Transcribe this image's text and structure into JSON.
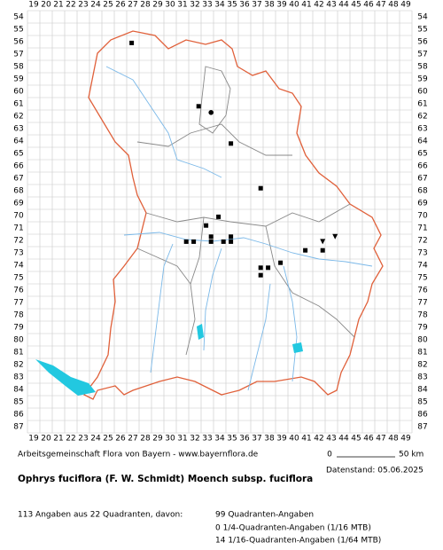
{
  "map": {
    "columns": [
      19,
      20,
      21,
      22,
      23,
      24,
      25,
      26,
      27,
      28,
      29,
      30,
      31,
      32,
      33,
      34,
      35,
      36,
      37,
      38,
      39,
      40,
      41,
      42,
      43,
      44,
      45,
      46,
      47,
      48,
      49
    ],
    "rows": [
      54,
      55,
      56,
      57,
      58,
      59,
      60,
      61,
      62,
      63,
      64,
      65,
      66,
      67,
      68,
      69,
      70,
      71,
      72,
      73,
      74,
      75,
      76,
      77,
      78,
      79,
      80,
      81,
      82,
      83,
      84,
      85,
      86,
      87
    ],
    "points": [
      {
        "x": 26.9,
        "y": 56.1,
        "marker": "square"
      },
      {
        "x": 32.3,
        "y": 61.2,
        "marker": "square"
      },
      {
        "x": 33.3,
        "y": 61.7,
        "marker": "circle"
      },
      {
        "x": 34.9,
        "y": 64.2,
        "marker": "square"
      },
      {
        "x": 37.3,
        "y": 67.8,
        "marker": "square"
      },
      {
        "x": 33.9,
        "y": 70.1,
        "marker": "square"
      },
      {
        "x": 32.9,
        "y": 70.8,
        "marker": "square"
      },
      {
        "x": 31.3,
        "y": 72.1,
        "marker": "square"
      },
      {
        "x": 31.9,
        "y": 72.1,
        "marker": "square"
      },
      {
        "x": 33.3,
        "y": 71.7,
        "marker": "square"
      },
      {
        "x": 33.3,
        "y": 72.1,
        "marker": "square"
      },
      {
        "x": 34.3,
        "y": 72.1,
        "marker": "square"
      },
      {
        "x": 34.9,
        "y": 71.7,
        "marker": "square"
      },
      {
        "x": 34.9,
        "y": 72.1,
        "marker": "square"
      },
      {
        "x": 40.9,
        "y": 72.8,
        "marker": "square"
      },
      {
        "x": 42.3,
        "y": 72.8,
        "marker": "square"
      },
      {
        "x": 42.3,
        "y": 72.1,
        "marker": "triangle"
      },
      {
        "x": 43.3,
        "y": 71.7,
        "marker": "triangle"
      },
      {
        "x": 38.9,
        "y": 73.8,
        "marker": "square"
      },
      {
        "x": 37.9,
        "y": 74.2,
        "marker": "square"
      },
      {
        "x": 37.3,
        "y": 74.2,
        "marker": "square"
      },
      {
        "x": 37.3,
        "y": 74.8,
        "marker": "square"
      }
    ]
  },
  "footer": {
    "source": "Arbeitsgemeinschaft Flora von Bayern - www.bayernflora.de",
    "scale_start": "0",
    "scale_end": "50 km",
    "date": "Datenstand: 05.06.2025"
  },
  "title": "Ophrys fuciflora (F. W. Schmidt) Moench subsp. fuciflora",
  "stats": {
    "summary": "113 Angaben aus 22 Quadranten, davon:",
    "lines": [
      "99 Quadranten-Angaben",
      "0 1/4-Quadranten-Angaben (1/16 MTB)",
      "14 1/16-Quadranten-Angaben (1/64 MTB)"
    ]
  }
}
